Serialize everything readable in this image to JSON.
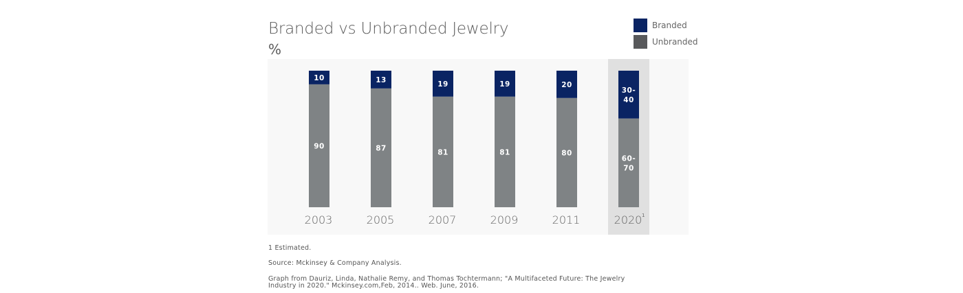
{
  "chart_data": {
    "type": "bar",
    "stacked": true,
    "title": "Branded vs Unbranded Jewelry",
    "subtitle": "%",
    "categories": [
      "2003",
      "2005",
      "2007",
      "2009",
      "2011",
      "2020"
    ],
    "category_superscripts": [
      "",
      "",
      "",
      "",
      "",
      "1"
    ],
    "highlighted_category": "2020",
    "series": [
      {
        "name": "Unbranded",
        "color": "#7f8385",
        "values": [
          90,
          87,
          81,
          81,
          80,
          65
        ],
        "value_labels": [
          "90",
          "87",
          "81",
          "81",
          "80",
          "60-70"
        ]
      },
      {
        "name": "Branded",
        "color": "#0a2463",
        "values": [
          10,
          13,
          19,
          19,
          20,
          35
        ],
        "value_labels": [
          "10",
          "13",
          "19",
          "19",
          "20",
          "30-40"
        ]
      }
    ],
    "ylim": [
      0,
      100
    ],
    "grid": false,
    "legend": {
      "position": "top-right",
      "items": [
        {
          "name": "Branded",
          "color": "#0a2463"
        },
        {
          "name": "Unbranded",
          "color": "#58595b"
        }
      ]
    },
    "plot_background": "#f8f8f8",
    "highlight_background": "#e0e0e0"
  },
  "footnotes": {
    "estimated": "1 Estimated.",
    "source": "Source:  Mckinsey & Company Analysis.",
    "citation": "Graph from Dauriz, Linda, Nathalie Remy, and Thomas Tochtermann; \"A Multifaceted Future: The Jewelry Industry in 2020.\" Mckinsey.com,Feb, 2014.. Web. June, 2016."
  }
}
